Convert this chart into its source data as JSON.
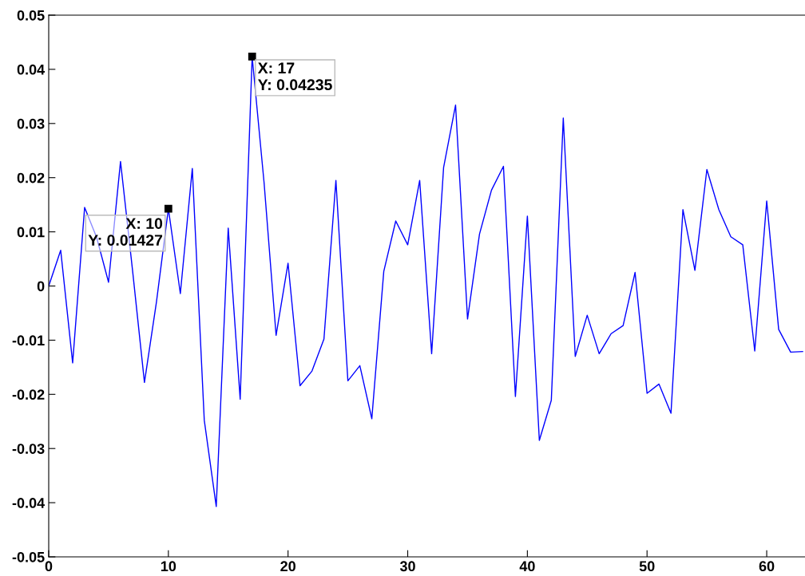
{
  "chart_data": {
    "type": "line",
    "x": [
      0,
      1,
      2,
      3,
      4,
      5,
      6,
      7,
      8,
      9,
      10,
      11,
      12,
      13,
      14,
      15,
      16,
      17,
      18,
      19,
      20,
      21,
      22,
      23,
      24,
      25,
      26,
      27,
      28,
      29,
      30,
      31,
      32,
      33,
      34,
      35,
      36,
      37,
      38,
      39,
      40,
      41,
      42,
      43,
      44,
      45,
      46,
      47,
      48,
      49,
      50,
      51,
      52,
      53,
      54,
      55,
      56,
      57,
      58,
      59,
      60,
      61,
      62,
      63
    ],
    "series": [
      {
        "color": "#0000ff",
        "values": [
          0.0,
          0.0066,
          -0.0142,
          0.0145,
          0.009,
          0.0007,
          0.023,
          0.003,
          -0.0178,
          -0.003,
          0.01427,
          -0.0014,
          0.0217,
          -0.0248,
          -0.0407,
          0.0107,
          -0.0209,
          0.04235,
          0.019,
          -0.0091,
          0.0042,
          -0.0184,
          -0.0157,
          -0.0098,
          0.0195,
          -0.0175,
          -0.0147,
          -0.0245,
          0.0027,
          0.012,
          0.0076,
          0.0195,
          -0.0125,
          0.0219,
          0.0334,
          -0.0061,
          0.0096,
          0.0177,
          0.0221,
          -0.0204,
          0.0129,
          -0.0285,
          -0.0211,
          0.031,
          -0.013,
          -0.0054,
          -0.0125,
          -0.0088,
          -0.0073,
          0.0025,
          -0.0198,
          -0.0181,
          -0.0235,
          0.0141,
          0.0029,
          0.0215,
          0.0141,
          0.0091,
          0.0076,
          -0.012,
          0.0157,
          -0.008,
          -0.0122,
          -0.0121
        ]
      }
    ],
    "xlim": [
      0,
      63.2
    ],
    "xticks": [
      0,
      10,
      20,
      30,
      40,
      50,
      60
    ],
    "ylim": [
      -0.05,
      0.05
    ],
    "yticks": [
      -0.05,
      -0.04,
      -0.03,
      -0.02,
      -0.01,
      0,
      0.01,
      0.02,
      0.03,
      0.04,
      0.05
    ],
    "grid": false,
    "legend": false,
    "marker": "none",
    "line_style": "solid",
    "annotations": [
      {
        "text": "X: 10\nY: 0.01427",
        "x": 10,
        "y": 0.01427
      },
      {
        "text": "X: 17\nY: 0.04235",
        "x": 17,
        "y": 0.04235
      }
    ]
  }
}
